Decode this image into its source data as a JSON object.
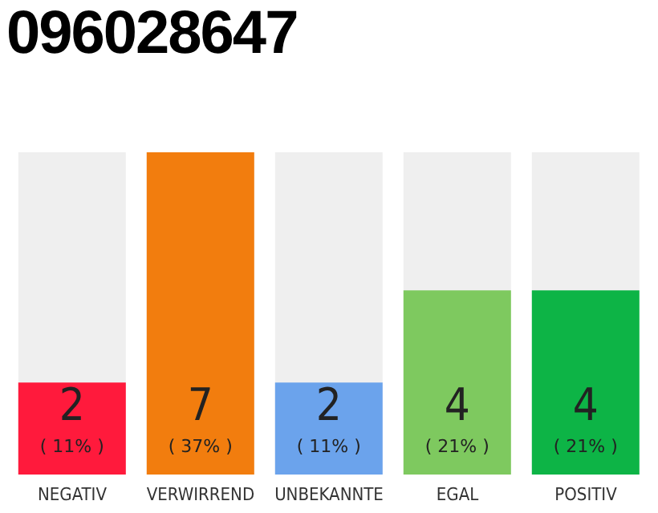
{
  "chart_data": {
    "type": "bar",
    "title": "096028647",
    "categories": [
      "NEGATIV",
      "VERWIRREND",
      "UNBEKANNTE",
      "EGAL",
      "POSITIV"
    ],
    "values": [
      2,
      7,
      2,
      4,
      4
    ],
    "colors": [
      "#ff1a3c",
      "#f27d0e",
      "#6ba3ec",
      "#7ec95f",
      "#0db446"
    ],
    "data_labels": true,
    "tick_labels": "x",
    "annotations": [
      "( 11% )",
      "( 37% )",
      "( 11% )",
      "( 21% )",
      "( 21% )"
    ]
  }
}
